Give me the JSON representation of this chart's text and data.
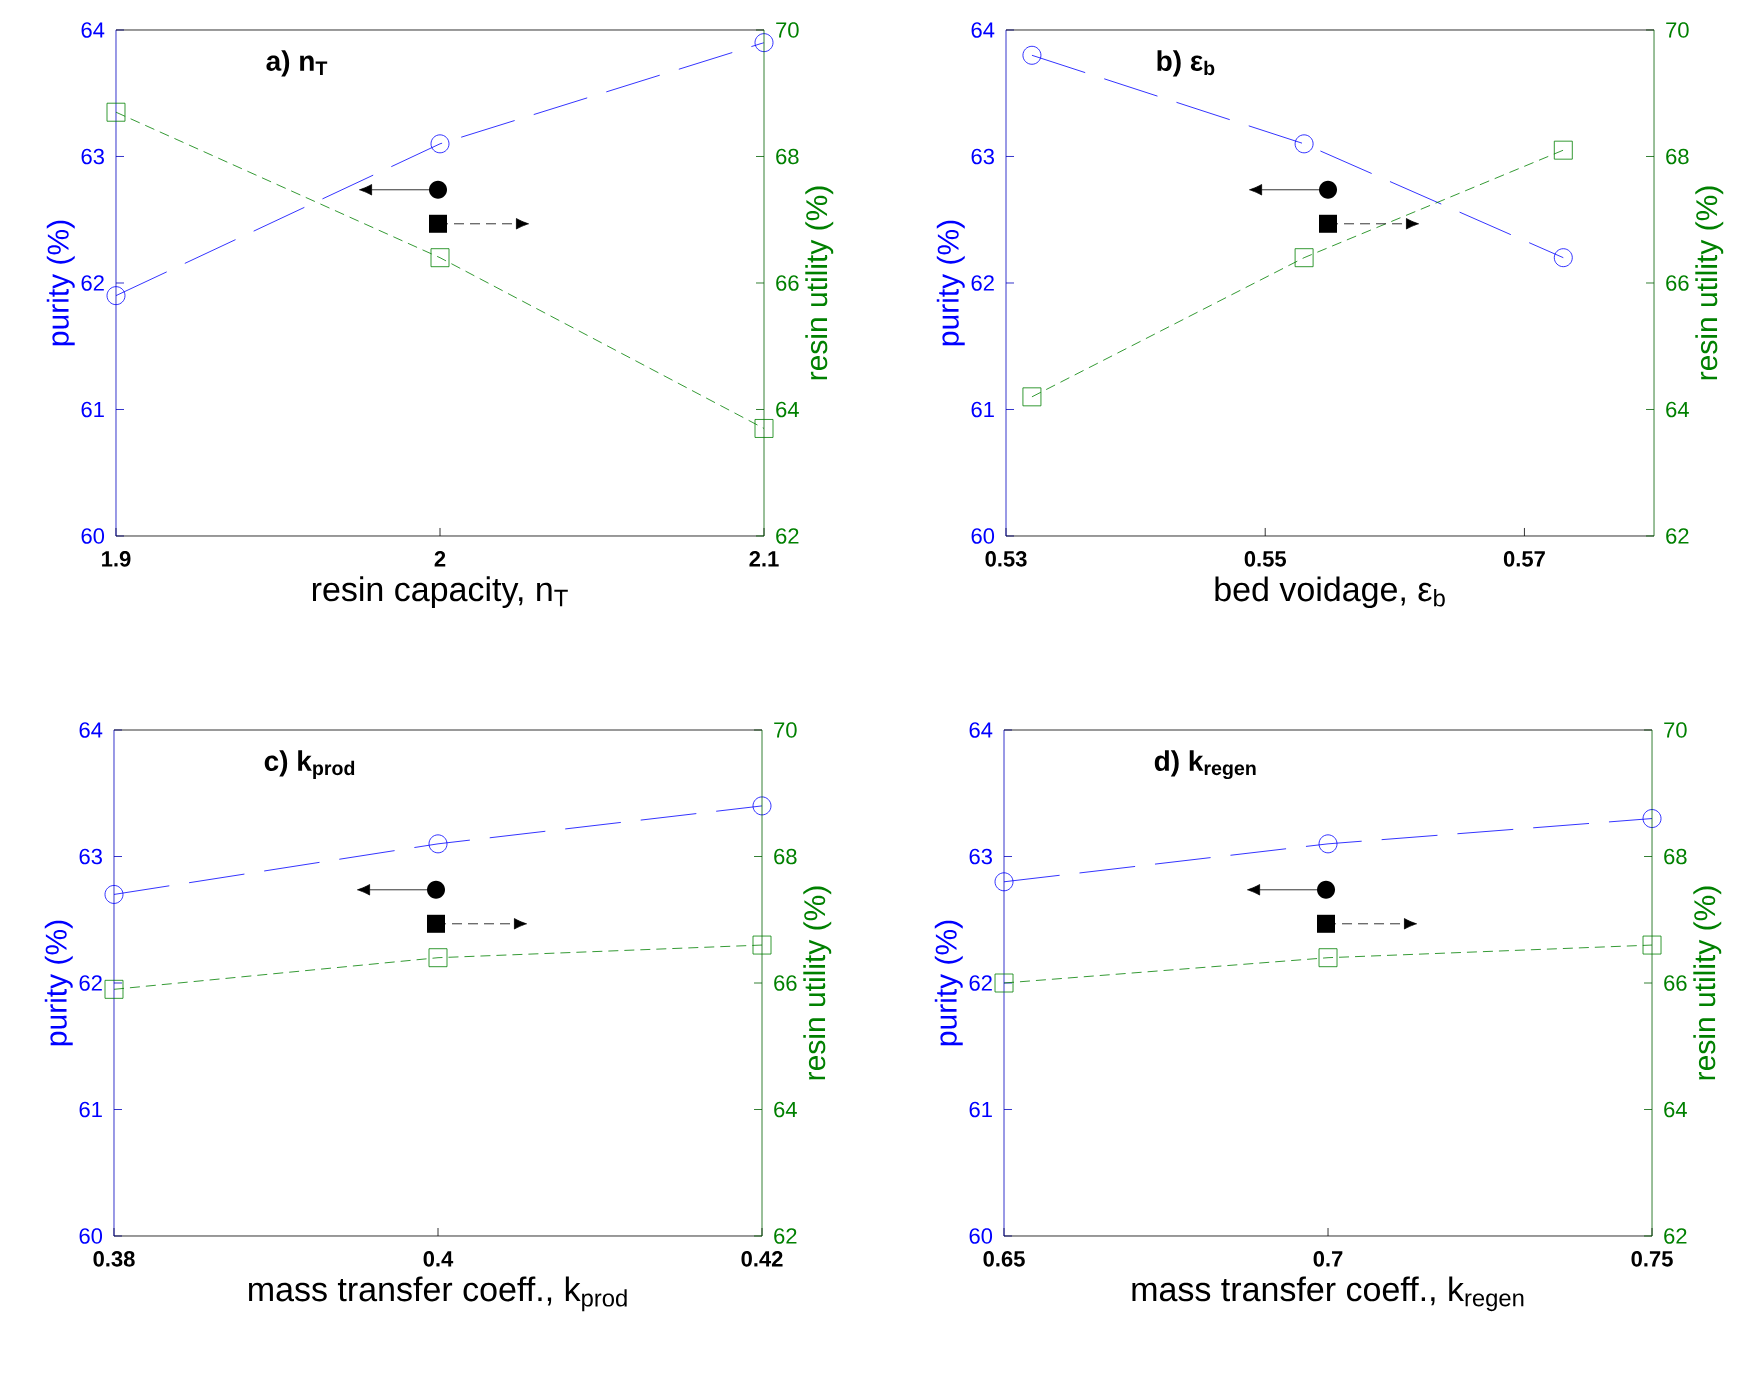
{
  "chart_data": [
    {
      "type": "line",
      "title": "a) n$_{T}$",
      "xlabel": "resin capacity, n$_{T}$",
      "ylabel": "purity (%)",
      "y2label": "resin utility (%)",
      "x": [
        1.9,
        2,
        2.1
      ],
      "xlim": [
        1.9,
        2.1
      ],
      "xticks": [
        1.9,
        2,
        2.1
      ],
      "ylim": [
        60,
        64
      ],
      "yticks": [
        60,
        61,
        62,
        63,
        64
      ],
      "y2lim": [
        62,
        70
      ],
      "y2ticks": [
        62,
        64,
        66,
        68,
        70
      ],
      "grid": false,
      "series": [
        {
          "color": "#0000ff",
          "values": [
            61.9,
            63.1,
            63.9
          ],
          "marker": "circle",
          "line_style": "dashed"
        },
        {
          "color": "#008000",
          "values": [
            68.7,
            66.4,
            63.7
          ],
          "marker": "square",
          "line_style": "dashed",
          "axis": "y2"
        }
      ]
    },
    {
      "type": "line",
      "title": "b) ε$_{b}$",
      "xlabel": "bed voidage, ε$_{b}$",
      "ylabel": "purity (%)",
      "y2label": "resin utility (%)",
      "x": [
        0.532,
        0.553,
        0.573
      ],
      "xlim": [
        0.53,
        0.58
      ],
      "xticks": [
        0.53,
        0.55,
        0.57
      ],
      "ylim": [
        60,
        64
      ],
      "yticks": [
        60,
        61,
        62,
        63,
        64
      ],
      "y2lim": [
        62,
        70
      ],
      "y2ticks": [
        62,
        64,
        66,
        68,
        70
      ],
      "grid": false,
      "series": [
        {
          "color": "#0000ff",
          "values": [
            63.8,
            63.1,
            62.2
          ],
          "marker": "circle",
          "line_style": "dashed"
        },
        {
          "color": "#008000",
          "values": [
            64.2,
            66.4,
            68.1
          ],
          "marker": "square",
          "line_style": "dashed",
          "axis": "y2"
        }
      ]
    },
    {
      "type": "line",
      "title": "c) k$_{prod}$",
      "xlabel": "mass transfer coeff., k$_{prod}$",
      "ylabel": "purity (%)",
      "y2label": "resin utility (%)",
      "x": [
        0.38,
        0.4,
        0.42
      ],
      "xlim": [
        0.38,
        0.42
      ],
      "xticks": [
        0.38,
        0.4,
        0.42
      ],
      "ylim": [
        60,
        64
      ],
      "yticks": [
        60,
        61,
        62,
        63,
        64
      ],
      "y2lim": [
        62,
        70
      ],
      "y2ticks": [
        62,
        64,
        66,
        68,
        70
      ],
      "grid": false,
      "series": [
        {
          "color": "#0000ff",
          "values": [
            62.7,
            63.1,
            63.4
          ],
          "marker": "circle",
          "line_style": "dashed"
        },
        {
          "color": "#008000",
          "values": [
            65.9,
            66.4,
            66.6
          ],
          "marker": "square",
          "line_style": "dashed",
          "axis": "y2"
        }
      ]
    },
    {
      "type": "line",
      "title": "d) k$_{regen}$",
      "xlabel": "mass transfer coeff., k$_{regen}$",
      "ylabel": "purity (%)",
      "y2label": "resin utility (%)",
      "x": [
        0.65,
        0.7,
        0.75
      ],
      "xlim": [
        0.65,
        0.75
      ],
      "xticks": [
        0.65,
        0.7,
        0.75
      ],
      "ylim": [
        60,
        64
      ],
      "yticks": [
        60,
        61,
        62,
        63,
        64
      ],
      "y2lim": [
        62,
        70
      ],
      "y2ticks": [
        62,
        64,
        66,
        68,
        70
      ],
      "grid": false,
      "series": [
        {
          "color": "#0000ff",
          "values": [
            62.8,
            63.1,
            63.3
          ],
          "marker": "circle",
          "line_style": "dashed"
        },
        {
          "color": "#008000",
          "values": [
            66.0,
            66.4,
            66.6
          ],
          "marker": "square",
          "line_style": "dashed",
          "axis": "y2"
        }
      ]
    }
  ]
}
